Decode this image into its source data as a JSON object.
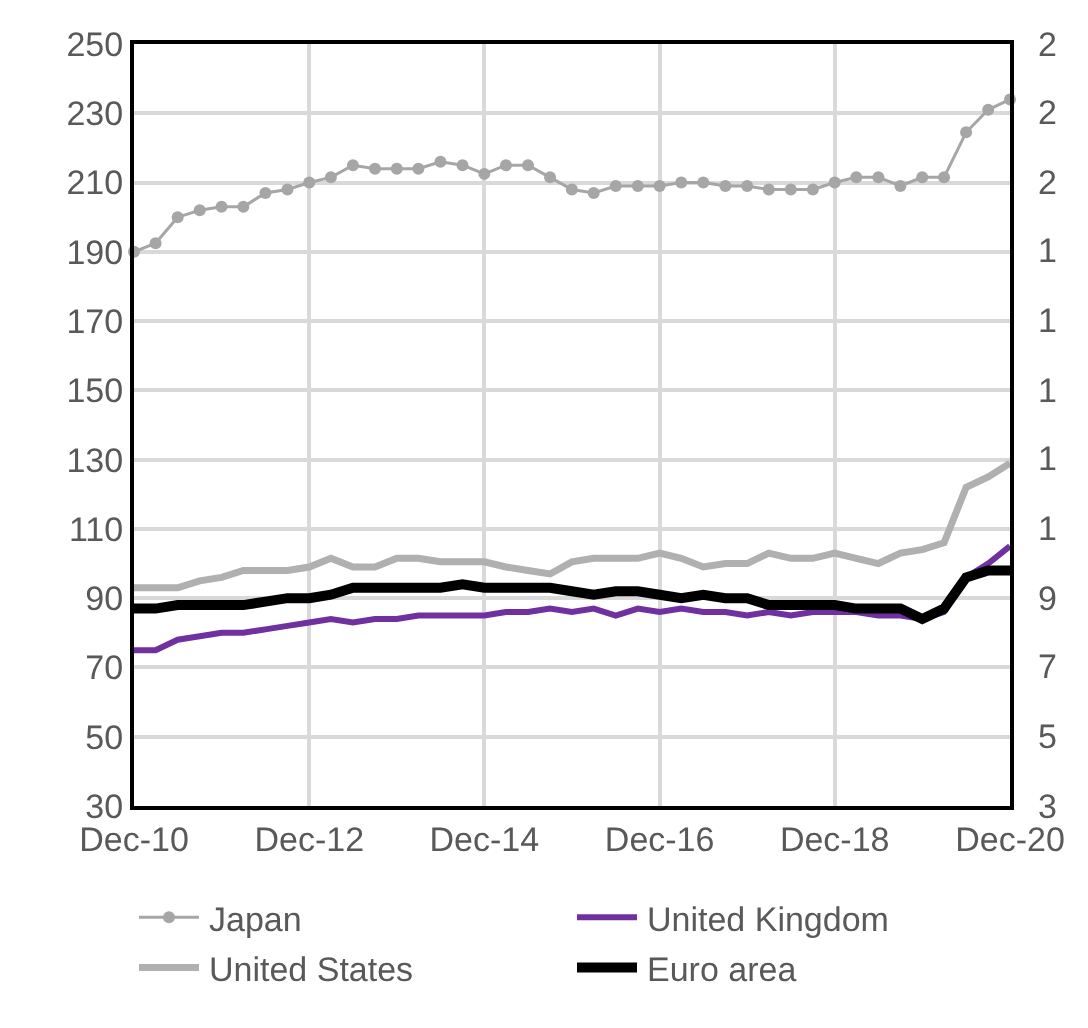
{
  "chart_data": {
    "type": "line",
    "x": [
      "2010-12",
      "2011-03",
      "2011-06",
      "2011-09",
      "2011-12",
      "2012-03",
      "2012-06",
      "2012-09",
      "2012-12",
      "2013-03",
      "2013-06",
      "2013-09",
      "2013-12",
      "2014-03",
      "2014-06",
      "2014-09",
      "2014-12",
      "2015-03",
      "2015-06",
      "2015-09",
      "2015-12",
      "2016-03",
      "2016-06",
      "2016-09",
      "2016-12",
      "2017-03",
      "2017-06",
      "2017-09",
      "2017-12",
      "2018-03",
      "2018-06",
      "2018-09",
      "2018-12",
      "2019-03",
      "2019-06",
      "2019-09",
      "2019-12",
      "2020-03",
      "2020-06",
      "2020-09",
      "2020-12"
    ],
    "series": [
      {
        "name": "Japan",
        "color": "#a6a6a6",
        "marker": "circle",
        "values": [
          190,
          192.5,
          200,
          202,
          203,
          203,
          207,
          208,
          210,
          211.5,
          215,
          214,
          214,
          214,
          216,
          215,
          212.5,
          215,
          215,
          211.5,
          208,
          207,
          209,
          209,
          209,
          210,
          210,
          209,
          209,
          208,
          208,
          208,
          210,
          211.5,
          211.5,
          209,
          211.5,
          211.5,
          224.5,
          231,
          234
        ]
      },
      {
        "name": "United Kingdom",
        "color": "#7030a0",
        "values": [
          75,
          75,
          78,
          79,
          80,
          80,
          81,
          82,
          83,
          84,
          83,
          84,
          84,
          85,
          85,
          85,
          85,
          86,
          86,
          87,
          86,
          87,
          85,
          87,
          86,
          87,
          86,
          86,
          85,
          86,
          85,
          86,
          86,
          86,
          85,
          85,
          84,
          86,
          96,
          100,
          105
        ]
      },
      {
        "name": "United States",
        "color": "#b0b0b0",
        "values": [
          93,
          93,
          93,
          95,
          96,
          98,
          98,
          98,
          99,
          101.5,
          99,
          99,
          101.5,
          101.5,
          100.5,
          100.5,
          100.5,
          99,
          98,
          97,
          100.5,
          101.5,
          101.5,
          101.5,
          103,
          101.5,
          99,
          100,
          100,
          103,
          101.5,
          101.5,
          103,
          101.5,
          100,
          103,
          104,
          106,
          122,
          125,
          129
        ]
      },
      {
        "name": "Euro area",
        "color": "#000000",
        "values": [
          87,
          87,
          88,
          88,
          88,
          88,
          89,
          90,
          90,
          91,
          93,
          93,
          93,
          93,
          93,
          94,
          93,
          93,
          93,
          93,
          92,
          91,
          92,
          92,
          91,
          90,
          91,
          90,
          90,
          88,
          88,
          88,
          88,
          87,
          87,
          87,
          84,
          87,
          96,
          98,
          98
        ]
      }
    ],
    "xlim": [
      "2010-12",
      "2020-12"
    ],
    "xticks": [
      {
        "value": "2010-12",
        "label": "Dec-10"
      },
      {
        "value": "2012-12",
        "label": "Dec-12"
      },
      {
        "value": "2014-12",
        "label": "Dec-14"
      },
      {
        "value": "2016-12",
        "label": "Dec-16"
      },
      {
        "value": "2018-12",
        "label": "Dec-18"
      },
      {
        "value": "2020-12",
        "label": "Dec-20"
      }
    ],
    "ylim": [
      30,
      250
    ],
    "yticks": [
      30,
      50,
      70,
      90,
      110,
      130,
      150,
      170,
      190,
      210,
      230,
      250
    ],
    "annotations": [
      "2",
      "2",
      "2",
      "1",
      "1",
      "1",
      "1",
      "1",
      "9",
      "7",
      "5",
      "3"
    ],
    "grid": true,
    "legend": "bottom",
    "marker": "none",
    "line_style": "solid"
  }
}
